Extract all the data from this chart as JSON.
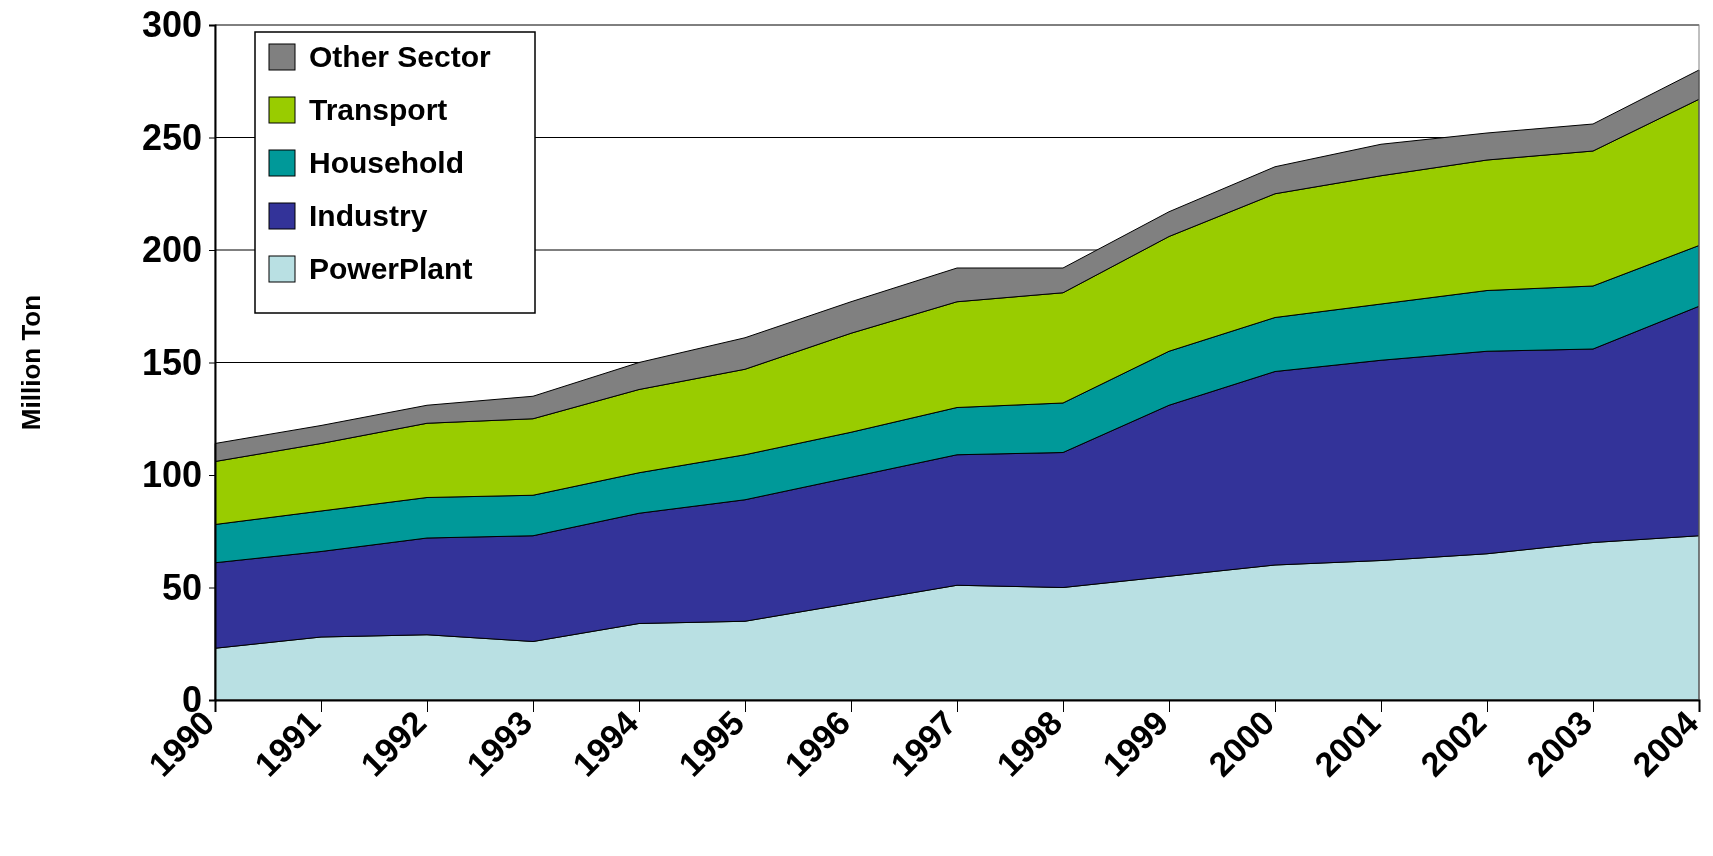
{
  "chart_data": {
    "type": "area",
    "stacked": true,
    "ylabel": "Million Ton",
    "categories": [
      "1990",
      "1991",
      "1992",
      "1993",
      "1994",
      "1995",
      "1996",
      "1997",
      "1998",
      "1999",
      "2000",
      "2001",
      "2002",
      "2003",
      "2004"
    ],
    "series": [
      {
        "name": "PowerPlant",
        "color": "#b9e0e3",
        "values": [
          23,
          28,
          29,
          26,
          34,
          35,
          43,
          51,
          50,
          55,
          60,
          62,
          65,
          70,
          73
        ]
      },
      {
        "name": "Industry",
        "color": "#333399",
        "values": [
          38,
          38,
          43,
          47,
          49,
          54,
          56,
          58,
          60,
          76,
          86,
          89,
          90,
          86,
          102
        ]
      },
      {
        "name": "Household",
        "color": "#009999",
        "values": [
          17,
          18,
          18,
          18,
          18,
          20,
          20,
          21,
          22,
          24,
          24,
          25,
          27,
          28,
          27
        ]
      },
      {
        "name": "Transport",
        "color": "#99cc00",
        "values": [
          28,
          30,
          33,
          34,
          37,
          38,
          44,
          47,
          49,
          51,
          55,
          57,
          58,
          60,
          65
        ]
      },
      {
        "name": "Other Sector",
        "color": "#808080",
        "values": [
          8,
          8,
          8,
          10,
          12,
          14,
          14,
          15,
          11,
          11,
          12,
          14,
          12,
          12,
          13
        ]
      }
    ],
    "ylim": [
      0,
      300
    ],
    "yticks": [
      0,
      50,
      100,
      150,
      200,
      250,
      300
    ],
    "grid": "y",
    "legend": "top left"
  }
}
